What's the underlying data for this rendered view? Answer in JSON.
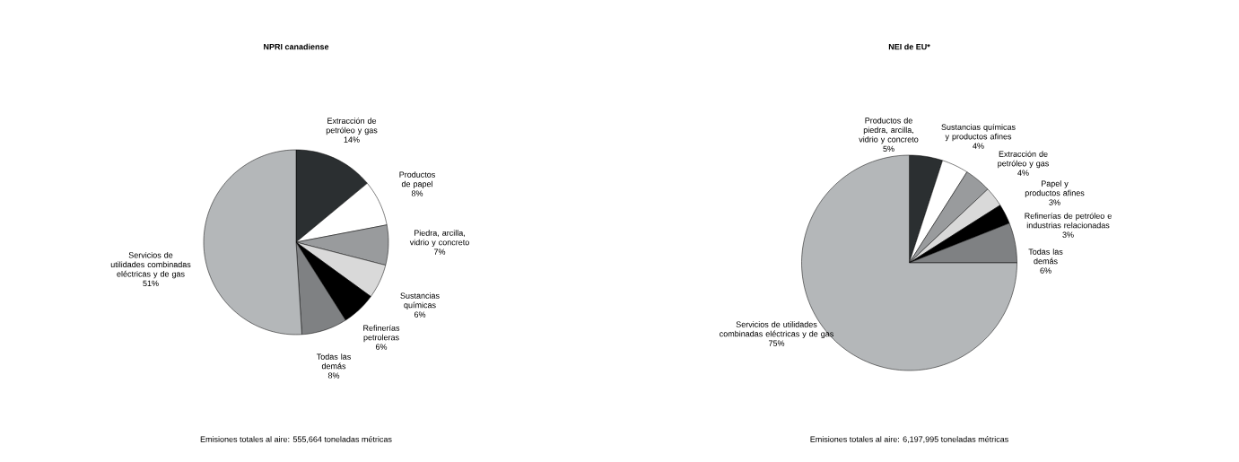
{
  "chart_data": [
    {
      "type": "pie",
      "title": "NPRI canadiense",
      "categories": [
        "Extracción de petróleo y gas",
        "Productos de papel",
        "Piedra, arcilla, vidrio y concreto",
        "Sustancias químicas",
        "Refinerías petroleras",
        "Todas las demás",
        "Servicios de utilidades combinadas eléctricas y de gas"
      ],
      "values": [
        14,
        8,
        7,
        6,
        6,
        8,
        51
      ],
      "value_labels": [
        "14%",
        "8%",
        "7%",
        "6%",
        "6%",
        "8%",
        "51%"
      ],
      "colors": [
        "#2b2f31",
        "#ffffff",
        "#999b9d",
        "#d9d9d9",
        "#000000",
        "#7f8183",
        "#b4b7b9"
      ],
      "annotations": [
        "Emisiones totales al aire: 555,664 toneladas métricas"
      ]
    },
    {
      "type": "pie",
      "title": "NEI de EU*",
      "categories": [
        "Productos de piedra, arcilla, vidrio y concreto",
        "Sustancias químicas y productos afines",
        "Extracción de petróleo y gas",
        "Papel y productos afines",
        "Refinerías de petróleo e industrias relacionadas",
        "Todas las demás",
        "Servicios de utilidades combinadas eléctricas y de gas"
      ],
      "values": [
        5,
        4,
        4,
        3,
        3,
        6,
        75
      ],
      "value_labels": [
        "5%",
        "4%",
        "4%",
        "3%",
        "3%",
        "6%",
        "75%"
      ],
      "colors": [
        "#2b2f31",
        "#ffffff",
        "#999b9d",
        "#d9d9d9",
        "#000000",
        "#7f8183",
        "#b4b7b9"
      ],
      "annotations": [
        "Emisiones totales al aire: 6,197,995 toneladas métricas"
      ]
    }
  ]
}
